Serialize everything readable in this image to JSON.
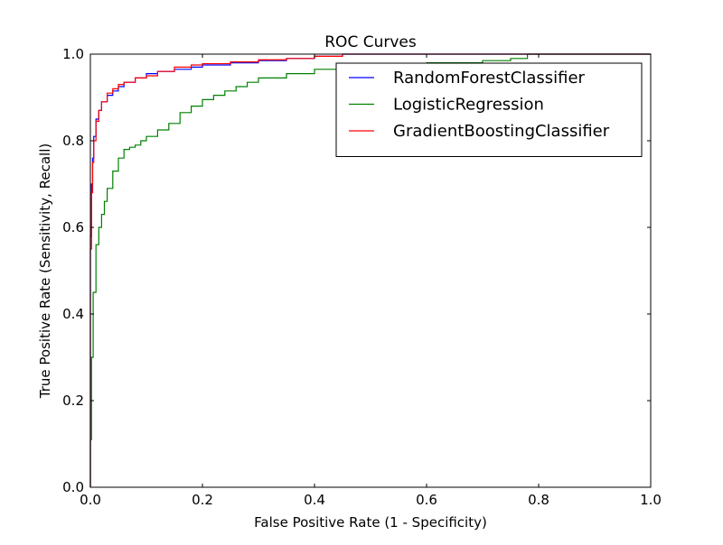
{
  "chart_data": {
    "type": "line",
    "title": "ROC Curves",
    "xlabel": "False Positive Rate (1 - Specificity)",
    "ylabel": "True Positive Rate (Sensitivity, Recall)",
    "xlim": [
      0.0,
      1.0
    ],
    "ylim": [
      0.0,
      1.0
    ],
    "x_ticks": [
      "0.0",
      "0.2",
      "0.4",
      "0.6",
      "0.8",
      "1.0"
    ],
    "y_ticks": [
      "0.0",
      "0.2",
      "0.4",
      "0.6",
      "0.8",
      "1.0"
    ],
    "grid": false,
    "legend_position": "top-right",
    "series": [
      {
        "name": "RandomForestClassifier",
        "color": "#0000ff",
        "points": [
          [
            0.0,
            0.0
          ],
          [
            0.0,
            0.58
          ],
          [
            0.002,
            0.7
          ],
          [
            0.004,
            0.76
          ],
          [
            0.006,
            0.81
          ],
          [
            0.01,
            0.85
          ],
          [
            0.015,
            0.87
          ],
          [
            0.02,
            0.89
          ],
          [
            0.03,
            0.905
          ],
          [
            0.04,
            0.915
          ],
          [
            0.05,
            0.925
          ],
          [
            0.06,
            0.935
          ],
          [
            0.08,
            0.945
          ],
          [
            0.1,
            0.955
          ],
          [
            0.12,
            0.96
          ],
          [
            0.15,
            0.965
          ],
          [
            0.18,
            0.97
          ],
          [
            0.2,
            0.975
          ],
          [
            0.25,
            0.98
          ],
          [
            0.3,
            0.985
          ],
          [
            0.35,
            0.99
          ],
          [
            0.4,
            0.995
          ],
          [
            0.45,
            1.0
          ],
          [
            0.6,
            1.0
          ],
          [
            0.8,
            1.0
          ],
          [
            1.0,
            1.0
          ]
        ]
      },
      {
        "name": "LogisticRegression",
        "color": "#008000",
        "points": [
          [
            0.0,
            0.0
          ],
          [
            0.0,
            0.11
          ],
          [
            0.002,
            0.3
          ],
          [
            0.005,
            0.45
          ],
          [
            0.01,
            0.56
          ],
          [
            0.015,
            0.6
          ],
          [
            0.02,
            0.63
          ],
          [
            0.025,
            0.66
          ],
          [
            0.03,
            0.69
          ],
          [
            0.04,
            0.73
          ],
          [
            0.05,
            0.76
          ],
          [
            0.06,
            0.78
          ],
          [
            0.07,
            0.785
          ],
          [
            0.08,
            0.79
          ],
          [
            0.09,
            0.8
          ],
          [
            0.1,
            0.81
          ],
          [
            0.12,
            0.825
          ],
          [
            0.14,
            0.84
          ],
          [
            0.16,
            0.865
          ],
          [
            0.18,
            0.88
          ],
          [
            0.2,
            0.895
          ],
          [
            0.22,
            0.905
          ],
          [
            0.24,
            0.915
          ],
          [
            0.26,
            0.925
          ],
          [
            0.28,
            0.935
          ],
          [
            0.3,
            0.945
          ],
          [
            0.35,
            0.955
          ],
          [
            0.4,
            0.965
          ],
          [
            0.45,
            0.97
          ],
          [
            0.5,
            0.975
          ],
          [
            0.6,
            0.98
          ],
          [
            0.7,
            0.985
          ],
          [
            0.75,
            0.99
          ],
          [
            0.78,
            1.0
          ],
          [
            0.85,
            1.0
          ],
          [
            1.0,
            1.0
          ]
        ]
      },
      {
        "name": "GradientBoostingClassifier",
        "color": "#ff0000",
        "points": [
          [
            0.0,
            0.0
          ],
          [
            0.0,
            0.55
          ],
          [
            0.002,
            0.68
          ],
          [
            0.004,
            0.75
          ],
          [
            0.006,
            0.8
          ],
          [
            0.01,
            0.845
          ],
          [
            0.015,
            0.87
          ],
          [
            0.02,
            0.89
          ],
          [
            0.03,
            0.91
          ],
          [
            0.04,
            0.92
          ],
          [
            0.05,
            0.93
          ],
          [
            0.06,
            0.935
          ],
          [
            0.08,
            0.945
          ],
          [
            0.1,
            0.95
          ],
          [
            0.12,
            0.96
          ],
          [
            0.15,
            0.97
          ],
          [
            0.18,
            0.975
          ],
          [
            0.2,
            0.978
          ],
          [
            0.25,
            0.982
          ],
          [
            0.3,
            0.987
          ],
          [
            0.35,
            0.99
          ],
          [
            0.4,
            0.995
          ],
          [
            0.45,
            1.0
          ],
          [
            0.6,
            1.0
          ],
          [
            0.8,
            1.0
          ],
          [
            1.0,
            1.0
          ]
        ]
      }
    ]
  }
}
